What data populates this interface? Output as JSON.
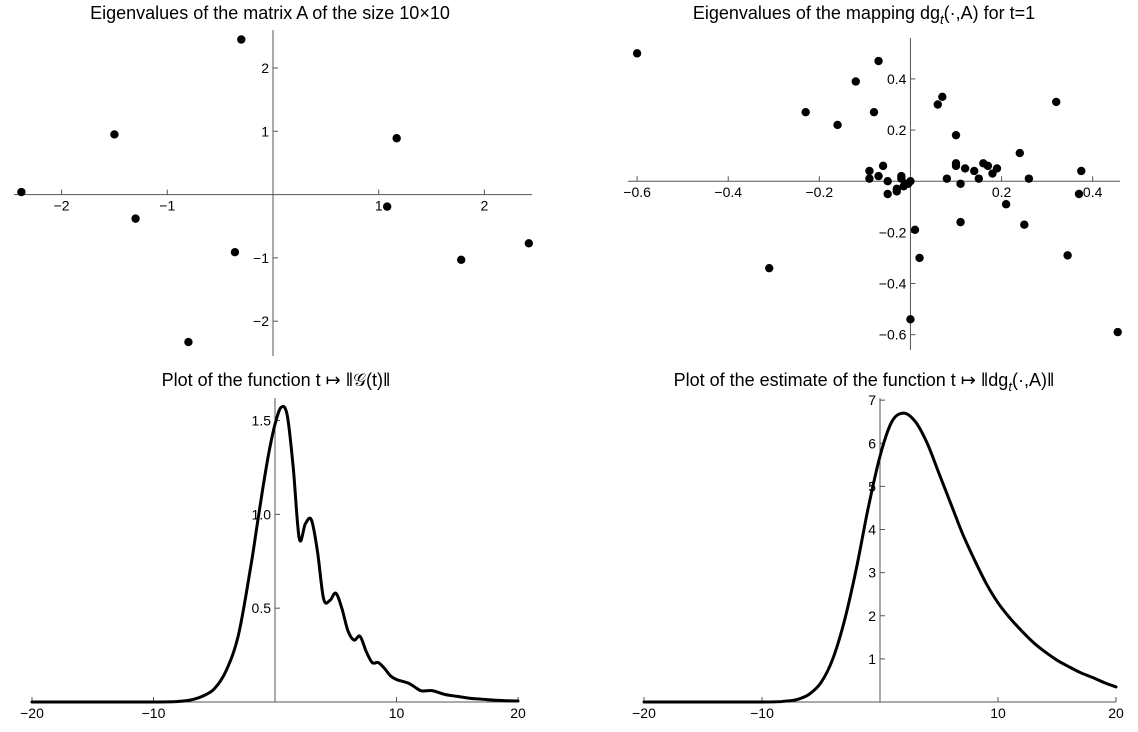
{
  "chart_data": [
    {
      "type": "scatter",
      "title": "Eigenvalues of the matrix A of the size 10×10",
      "xlabel": "",
      "ylabel": "",
      "xlim": [
        -2.45,
        2.45
      ],
      "ylim": [
        -2.55,
        2.6
      ],
      "xticks": [
        -2,
        -1,
        1,
        2
      ],
      "yticks": [
        -2,
        -1,
        1,
        2
      ],
      "xtick_labels": [
        "−2",
        "−1",
        "1",
        "2"
      ],
      "ytick_labels": [
        "−2",
        "−1",
        "1",
        "2"
      ],
      "grid": false,
      "marker_color": "#000000",
      "x": [
        -2.38,
        -1.5,
        -1.3,
        -0.8,
        -0.36,
        -0.3,
        1.08,
        1.17,
        1.78,
        2.42
      ],
      "y": [
        0.04,
        0.95,
        -0.38,
        -2.33,
        -0.91,
        2.45,
        -0.19,
        0.89,
        -1.03,
        -0.77
      ]
    },
    {
      "type": "scatter",
      "title": "Eigenvalues of the mapping dg_t(·,A) for t=1",
      "title_main": "Eigenvalues of the mapping dg",
      "title_sub": "t",
      "title_rest": "(·,A) for t=1",
      "xlabel": "",
      "ylabel": "",
      "xlim": [
        -0.62,
        0.46
      ],
      "ylim": [
        -0.66,
        0.56
      ],
      "xticks": [
        -0.6,
        -0.4,
        -0.2,
        0.2,
        0.4
      ],
      "yticks": [
        -0.6,
        -0.4,
        -0.2,
        0.2,
        0.4
      ],
      "xtick_labels": [
        "−0.6",
        "−0.4",
        "−0.2",
        "0.2",
        "0.4"
      ],
      "ytick_labels": [
        "−0.6",
        "−0.4",
        "−0.2",
        "0.2",
        "0.4"
      ],
      "grid": false,
      "marker_color": "#000000",
      "x": [
        -0.6,
        -0.31,
        -0.23,
        -0.16,
        -0.12,
        -0.09,
        -0.07,
        -0.08,
        -0.09,
        -0.07,
        -0.06,
        -0.05,
        -0.05,
        -0.03,
        -0.03,
        -0.02,
        -0.02,
        -0.01,
        -0.015,
        0.0,
        0.0,
        -0.005,
        0.01,
        0.02,
        0.06,
        0.07,
        0.08,
        0.1,
        0.1,
        0.1,
        0.11,
        0.11,
        0.12,
        0.14,
        0.15,
        0.16,
        0.17,
        0.18,
        0.19,
        0.21,
        0.24,
        0.25,
        0.26,
        0.32,
        0.345,
        0.37,
        0.375,
        0.455
      ],
      "y": [
        0.5,
        -0.34,
        0.27,
        0.22,
        0.39,
        0.04,
        0.47,
        0.27,
        0.01,
        0.02,
        0.06,
        0.0,
        -0.05,
        -0.04,
        -0.03,
        0.02,
        0.01,
        -0.01,
        -0.02,
        -0.54,
        0.0,
        -0.01,
        -0.19,
        -0.3,
        0.3,
        0.33,
        0.01,
        0.06,
        0.07,
        0.18,
        -0.01,
        -0.16,
        0.05,
        0.04,
        0.01,
        0.07,
        0.06,
        0.03,
        0.05,
        -0.09,
        0.11,
        -0.17,
        0.01,
        0.31,
        -0.29,
        -0.05,
        0.04,
        -0.59
      ]
    },
    {
      "type": "line",
      "title": "Plot of the function t ↦ ‖𝒢(t)‖",
      "xlabel": "",
      "ylabel": "",
      "xlim": [
        -20,
        20
      ],
      "ylim": [
        0,
        1.62
      ],
      "xticks": [
        -20,
        -10,
        10,
        20
      ],
      "yticks": [
        0.5,
        1.0,
        1.5
      ],
      "xtick_labels": [
        "−20",
        "−10",
        "10",
        "20"
      ],
      "ytick_labels": [
        "0.5",
        "1.0",
        "1.5"
      ],
      "grid": false,
      "line_color": "#000000",
      "x": [
        -20,
        -10,
        -8,
        -7,
        -6,
        -5,
        -4,
        -3,
        -2,
        -1.5,
        -1,
        -0.5,
        0,
        0.5,
        1,
        1.5,
        2,
        2.5,
        3,
        3.5,
        4,
        4.5,
        5,
        5.5,
        6,
        6.5,
        7,
        7.5,
        8,
        8.5,
        9,
        9.5,
        10,
        10.5,
        11,
        11.5,
        12,
        12.5,
        13,
        14,
        15,
        16,
        17,
        18,
        19,
        20
      ],
      "y": [
        0.0,
        0.0,
        0.003,
        0.01,
        0.03,
        0.07,
        0.17,
        0.36,
        0.72,
        0.93,
        1.14,
        1.33,
        1.48,
        1.57,
        1.53,
        1.25,
        0.87,
        0.95,
        0.97,
        0.8,
        0.55,
        0.54,
        0.58,
        0.5,
        0.38,
        0.33,
        0.35,
        0.27,
        0.21,
        0.21,
        0.18,
        0.14,
        0.12,
        0.11,
        0.1,
        0.08,
        0.06,
        0.06,
        0.06,
        0.04,
        0.03,
        0.02,
        0.015,
        0.01,
        0.007,
        0.005
      ]
    },
    {
      "type": "line",
      "title": "Plot of the estimate of the function t ↦ ‖dg_t(·,A)‖",
      "title_main": "Plot of the estimate of the function t ↦ ‖dg",
      "title_sub": "t",
      "title_rest": "(·,A)‖",
      "xlabel": "",
      "ylabel": "",
      "xlim": [
        -20,
        20
      ],
      "ylim": [
        0,
        7.05
      ],
      "xticks": [
        -20,
        -10,
        10,
        20
      ],
      "yticks": [
        1,
        2,
        3,
        4,
        5,
        6,
        7
      ],
      "xtick_labels": [
        "−20",
        "−10",
        "10",
        "20"
      ],
      "ytick_labels": [
        "1",
        "2",
        "3",
        "4",
        "5",
        "6",
        "7"
      ],
      "grid": false,
      "line_color": "#000000",
      "x": [
        -20,
        -10,
        -8,
        -7,
        -6,
        -5,
        -4,
        -3,
        -2,
        -1,
        0,
        1,
        2,
        3,
        4,
        5,
        6,
        7,
        8,
        9,
        10,
        11,
        12,
        13,
        14,
        15,
        16,
        17,
        18,
        19,
        20
      ],
      "y": [
        0.0,
        0.0,
        0.02,
        0.06,
        0.18,
        0.45,
        1.0,
        1.9,
        3.1,
        4.5,
        5.7,
        6.5,
        6.7,
        6.5,
        6.0,
        5.3,
        4.6,
        3.9,
        3.3,
        2.75,
        2.3,
        1.95,
        1.65,
        1.38,
        1.16,
        0.97,
        0.82,
        0.68,
        0.57,
        0.45,
        0.35
      ]
    }
  ]
}
